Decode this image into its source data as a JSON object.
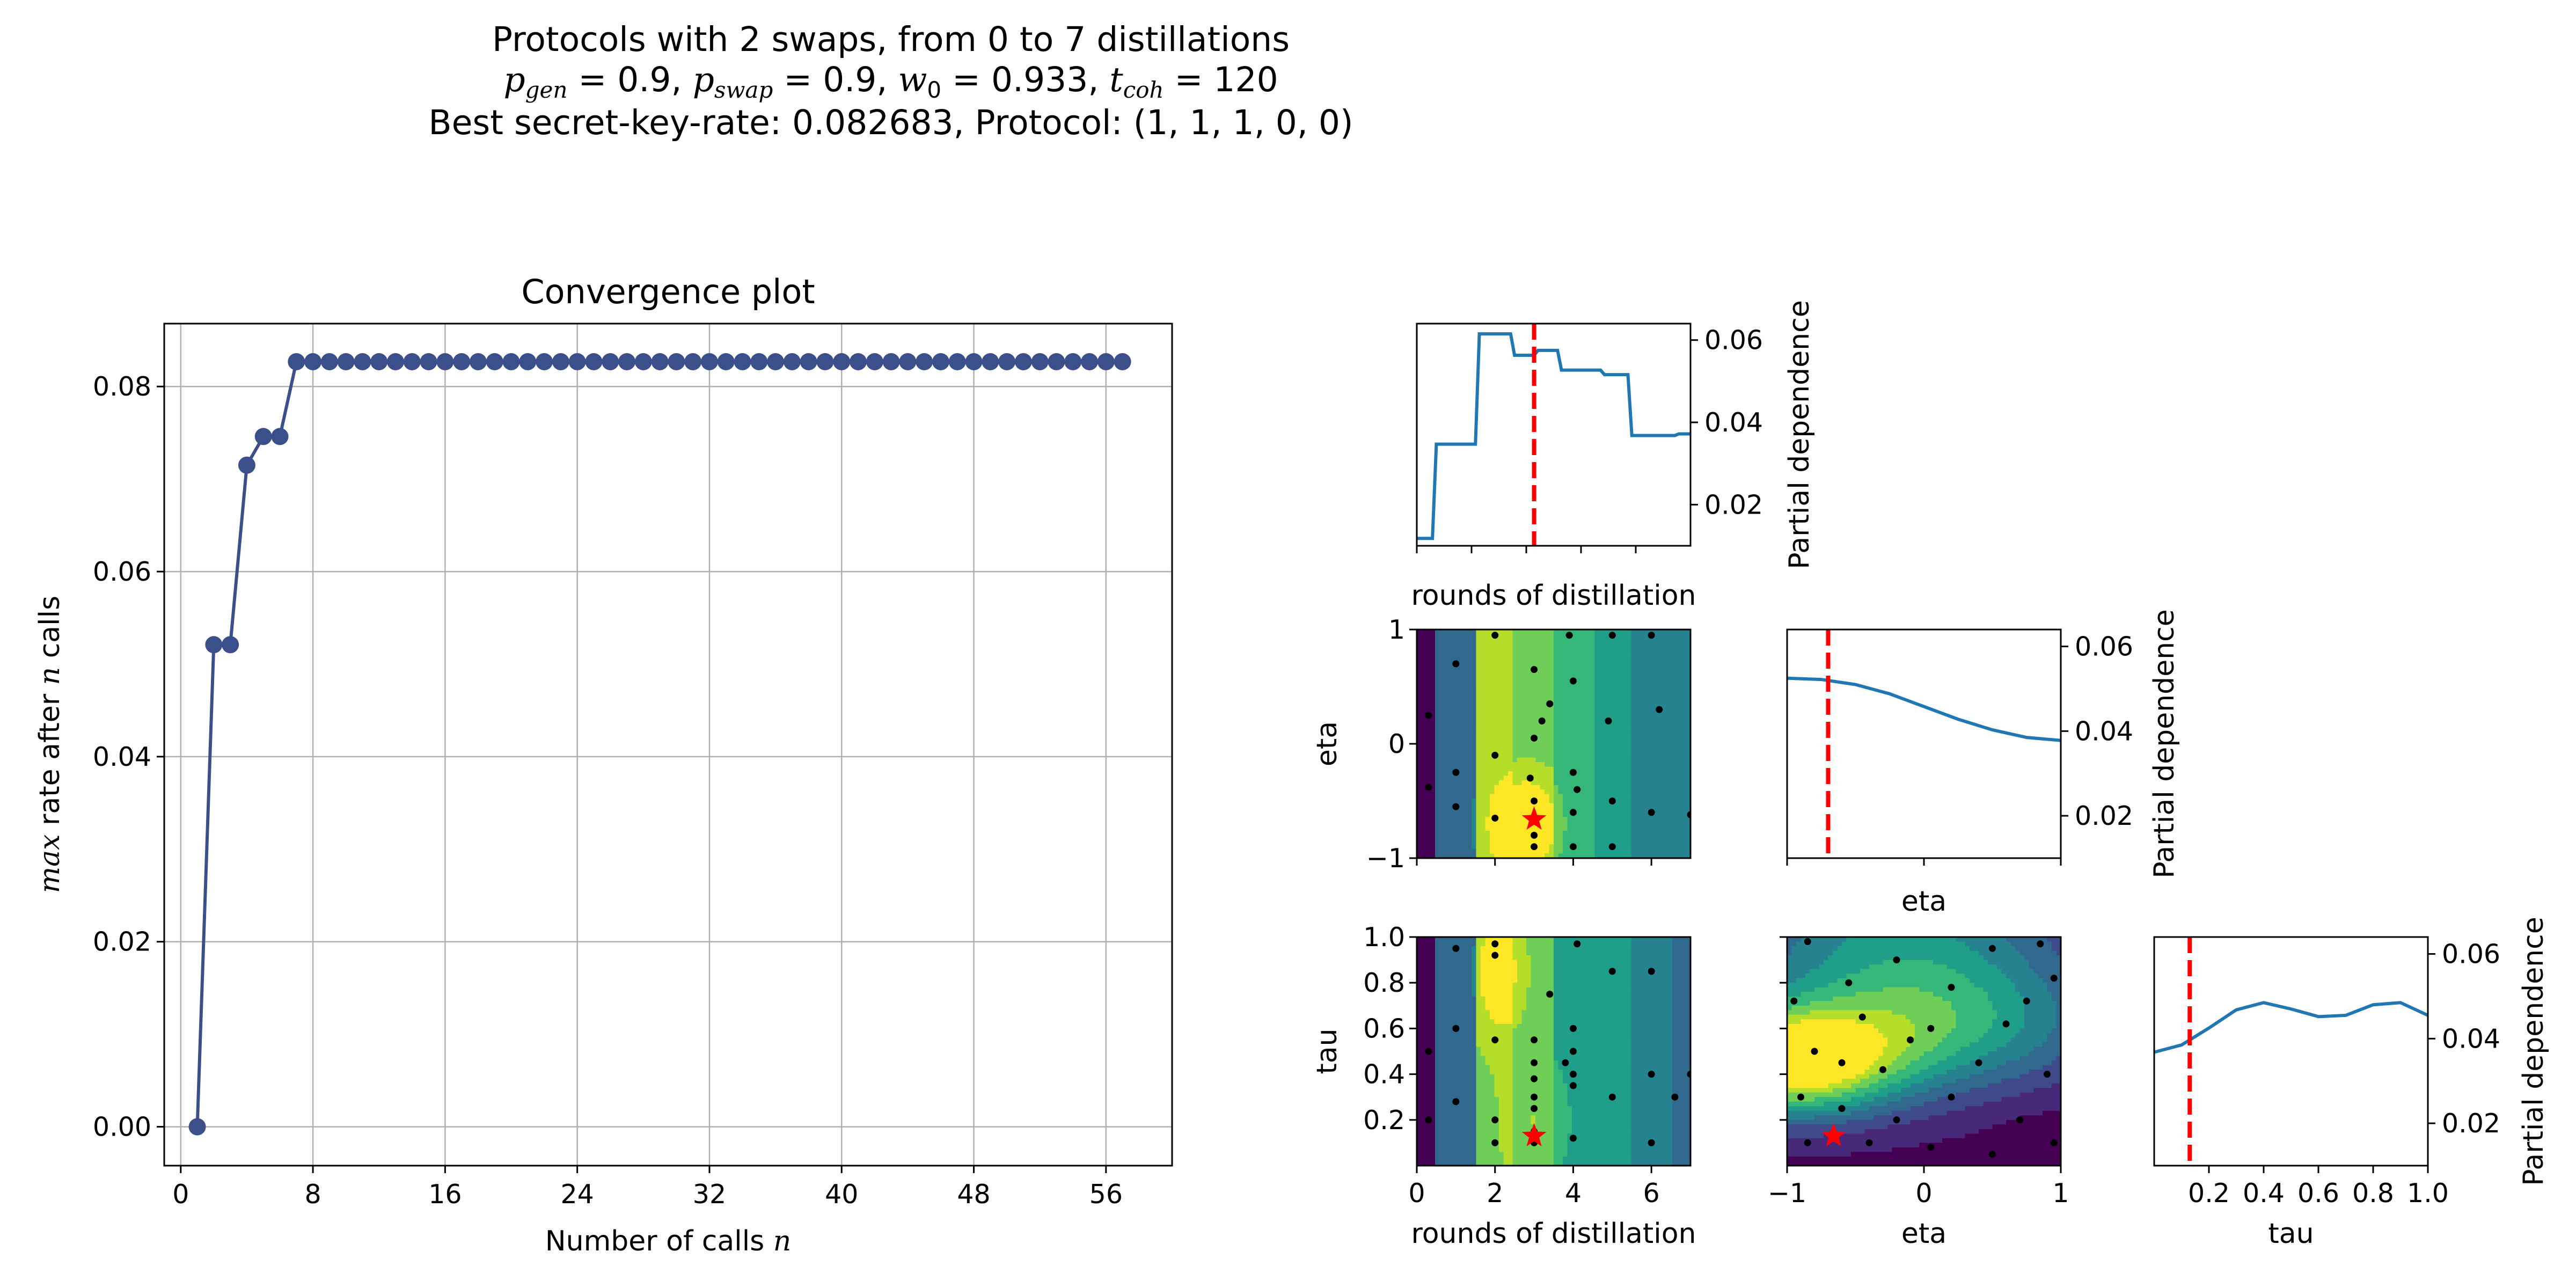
{
  "suptitle": {
    "line1": "Protocols with 2 swaps, from 0 to 7 distillations",
    "line2": "p_gen = 0.9, p_swap = 0.9, w_0 = 0.933, t_coh = 120",
    "line3": "Best secret-key-rate: 0.082683, Protocol: (1, 1, 1, 0, 0)",
    "params": {
      "p_gen": "0.9",
      "p_swap": "0.9",
      "w_0": "0.933",
      "t_coh": "120"
    }
  },
  "chart_data": [
    {
      "type": "line",
      "title": "Convergence plot",
      "xlabel": "Number of calls",
      "xlabel_var": "n",
      "ylabel_prefix": "max",
      "ylabel_mid": "rate after",
      "ylabel_var": "n",
      "ylabel_suffix": "calls",
      "xlim": [
        -1,
        60
      ],
      "ylim": [
        -0.0042,
        0.0868
      ],
      "xticks": [
        0,
        8,
        16,
        24,
        32,
        40,
        48,
        56
      ],
      "yticks": [
        0.0,
        0.02,
        0.04,
        0.06,
        0.08
      ],
      "ytick_labels": [
        "0.00",
        "0.02",
        "0.04",
        "0.06",
        "0.08"
      ],
      "grid": true,
      "color": "#3b4f8a",
      "series": [
        {
          "x": [
            1,
            2,
            3,
            4,
            5,
            6,
            7,
            8,
            9,
            10,
            11,
            12,
            13,
            14,
            15,
            16,
            17,
            18,
            19,
            20,
            21,
            22,
            23,
            24,
            25,
            26,
            27,
            28,
            29,
            30,
            31,
            32,
            33,
            34,
            35,
            36,
            37,
            38,
            39,
            40,
            41,
            42,
            43,
            44,
            45,
            46,
            47,
            48,
            49,
            50,
            51,
            52,
            53,
            54,
            55,
            56,
            57
          ],
          "y": [
            0.0,
            0.0521,
            0.0521,
            0.0715,
            0.0746,
            0.0746,
            0.082683,
            0.082683,
            0.082683,
            0.082683,
            0.082683,
            0.082683,
            0.082683,
            0.082683,
            0.082683,
            0.082683,
            0.082683,
            0.082683,
            0.082683,
            0.082683,
            0.082683,
            0.082683,
            0.082683,
            0.082683,
            0.082683,
            0.082683,
            0.082683,
            0.082683,
            0.082683,
            0.082683,
            0.082683,
            0.082683,
            0.082683,
            0.082683,
            0.082683,
            0.082683,
            0.082683,
            0.082683,
            0.082683,
            0.082683,
            0.082683,
            0.082683,
            0.082683,
            0.082683,
            0.082683,
            0.082683,
            0.082683,
            0.082683,
            0.082683,
            0.082683,
            0.082683,
            0.082683,
            0.082683,
            0.082683,
            0.082683,
            0.082683,
            0.082683
          ]
        }
      ]
    },
    {
      "type": "line",
      "xlabel": "rounds of distillation",
      "ylabel": "Partial dependence",
      "xlim": [
        0,
        7
      ],
      "ylim": [
        0.01,
        0.064
      ],
      "yticks": [
        0.02,
        0.04,
        0.06
      ],
      "ytick_labels": [
        "0.02",
        "0.04",
        "0.06"
      ],
      "best": 3,
      "color": "#1f77b4",
      "series": [
        {
          "x": [
            0,
            0.4,
            0.5,
            1.5,
            1.6,
            2.4,
            2.5,
            3.0,
            3.1,
            3.6,
            3.7,
            4.7,
            4.8,
            5.4,
            5.5,
            6.6,
            6.7,
            7
          ],
          "y": [
            0.0118,
            0.0118,
            0.0347,
            0.0347,
            0.0615,
            0.0615,
            0.0563,
            0.0563,
            0.0575,
            0.0575,
            0.0527,
            0.0527,
            0.0516,
            0.0516,
            0.0368,
            0.0368,
            0.0372,
            0.0372
          ]
        }
      ]
    },
    {
      "type": "line",
      "xlabel": "eta",
      "ylabel": "Partial dependence",
      "xlim": [
        -1,
        1
      ],
      "ylim": [
        0.01,
        0.064
      ],
      "yticks": [
        0.02,
        0.04,
        0.06
      ],
      "ytick_labels": [
        "0.02",
        "0.04",
        "0.06"
      ],
      "best": -0.7,
      "color": "#1f77b4",
      "series": [
        {
          "x": [
            -1.0,
            -0.75,
            -0.5,
            -0.25,
            0.0,
            0.25,
            0.5,
            0.75,
            1.0
          ],
          "y": [
            0.0525,
            0.0522,
            0.051,
            0.0488,
            0.0458,
            0.0428,
            0.0403,
            0.0385,
            0.0378
          ]
        }
      ]
    },
    {
      "type": "line",
      "xlabel": "tau",
      "ylabel": "Partial dependence",
      "xlim": [
        0,
        1
      ],
      "ylim": [
        0.01,
        0.064
      ],
      "xticks": [
        0.2,
        0.4,
        0.6,
        0.8,
        1.0
      ],
      "xtick_labels": [
        "0.2",
        "0.4",
        "0.6",
        "0.8",
        "1.0"
      ],
      "yticks": [
        0.02,
        0.04,
        0.06
      ],
      "ytick_labels": [
        "0.02",
        "0.04",
        "0.06"
      ],
      "best": 0.13,
      "color": "#1f77b4",
      "series": [
        {
          "x": [
            0.0,
            0.1,
            0.2,
            0.3,
            0.4,
            0.5,
            0.6,
            0.7,
            0.8,
            0.9,
            1.0
          ],
          "y": [
            0.0368,
            0.0385,
            0.0425,
            0.0468,
            0.0485,
            0.047,
            0.0452,
            0.0455,
            0.048,
            0.0485,
            0.0455
          ]
        }
      ]
    },
    {
      "type": "heatmap",
      "xlabel": "",
      "ylabel": "eta",
      "xlim": [
        0,
        7
      ],
      "ylim": [
        -1,
        1
      ],
      "yticks": [
        -1,
        0,
        1
      ],
      "ytick_labels": [
        "−1",
        "0",
        "1"
      ],
      "best": {
        "x": 3,
        "y": -0.66
      },
      "samples": [
        [
          0.3,
          0.25
        ],
        [
          0.3,
          -0.38
        ],
        [
          1,
          0.7
        ],
        [
          1,
          -0.25
        ],
        [
          1,
          -0.55
        ],
        [
          2,
          0.95
        ],
        [
          2,
          -0.1
        ],
        [
          2,
          -0.65
        ],
        [
          3,
          0.65
        ],
        [
          3,
          -0.8
        ],
        [
          3,
          -0.5
        ],
        [
          3,
          0.05
        ],
        [
          3,
          -0.9
        ],
        [
          3.4,
          0.35
        ],
        [
          3.9,
          0.95
        ],
        [
          4,
          -0.25
        ],
        [
          4,
          -0.6
        ],
        [
          4,
          -0.9
        ],
        [
          4,
          0.55
        ],
        [
          4.9,
          0.2
        ],
        [
          5,
          0.95
        ],
        [
          5,
          -0.5
        ],
        [
          5,
          -0.9
        ],
        [
          6,
          0.95
        ],
        [
          6,
          -0.6
        ],
        [
          6.2,
          0.3
        ],
        [
          7,
          -0.62
        ],
        [
          3.2,
          0.2
        ],
        [
          2.9,
          -0.3
        ],
        [
          4.1,
          -0.4
        ]
      ]
    },
    {
      "type": "heatmap",
      "xlabel": "rounds of distillation",
      "ylabel": "tau",
      "xlim": [
        0,
        7
      ],
      "ylim": [
        0,
        1
      ],
      "xticks": [
        0,
        2,
        4,
        6
      ],
      "xtick_labels": [
        "0",
        "2",
        "4",
        "6"
      ],
      "yticks": [
        0.2,
        0.4,
        0.6,
        0.8,
        1.0
      ],
      "ytick_labels": [
        "0.2",
        "0.4",
        "0.6",
        "0.8",
        "1.0"
      ],
      "best": {
        "x": 3,
        "y": 0.13
      },
      "samples": [
        [
          0.3,
          0.5
        ],
        [
          0.3,
          0.2
        ],
        [
          1,
          0.28
        ],
        [
          1,
          0.6
        ],
        [
          1,
          0.95
        ],
        [
          2,
          0.97
        ],
        [
          2,
          0.92
        ],
        [
          2,
          0.55
        ],
        [
          2,
          0.1
        ],
        [
          2,
          0.2
        ],
        [
          3,
          0.15
        ],
        [
          3,
          0.25
        ],
        [
          3,
          0.3
        ],
        [
          3,
          0.38
        ],
        [
          3,
          0.45
        ],
        [
          3,
          0.55
        ],
        [
          3,
          0.1
        ],
        [
          3.4,
          0.75
        ],
        [
          3.8,
          0.45
        ],
        [
          4,
          0.6
        ],
        [
          4,
          0.4
        ],
        [
          4,
          0.35
        ],
        [
          4,
          0.12
        ],
        [
          4,
          0.5
        ],
        [
          4.1,
          0.97
        ],
        [
          5,
          0.3
        ],
        [
          5,
          0.85
        ],
        [
          6,
          0.85
        ],
        [
          6,
          0.4
        ],
        [
          6,
          0.1
        ],
        [
          7,
          0.4
        ],
        [
          6.6,
          0.3
        ]
      ]
    },
    {
      "type": "heatmap",
      "xlabel": "eta",
      "ylabel": "",
      "xlim": [
        -1,
        1
      ],
      "ylim": [
        0,
        1
      ],
      "xticks": [
        -1,
        0,
        1
      ],
      "xtick_labels": [
        "−1",
        "0",
        "1"
      ],
      "best": {
        "x": -0.66,
        "y": 0.13
      },
      "samples": [
        [
          -0.85,
          0.98
        ],
        [
          -0.2,
          0.9
        ],
        [
          0.5,
          0.95
        ],
        [
          0.85,
          0.97
        ],
        [
          -0.55,
          0.8
        ],
        [
          0.2,
          0.78
        ],
        [
          0.95,
          0.82
        ],
        [
          -0.95,
          0.72
        ],
        [
          -0.45,
          0.65
        ],
        [
          0.05,
          0.6
        ],
        [
          0.6,
          0.62
        ],
        [
          -0.8,
          0.5
        ],
        [
          -0.6,
          0.45
        ],
        [
          -0.3,
          0.42
        ],
        [
          0.4,
          0.45
        ],
        [
          0.9,
          0.4
        ],
        [
          -0.9,
          0.3
        ],
        [
          -0.6,
          0.25
        ],
        [
          -0.2,
          0.2
        ],
        [
          0.2,
          0.3
        ],
        [
          0.7,
          0.2
        ],
        [
          -0.85,
          0.1
        ],
        [
          -0.4,
          0.1
        ],
        [
          0.05,
          0.08
        ],
        [
          0.5,
          0.05
        ],
        [
          0.95,
          0.1
        ],
        [
          -0.1,
          0.55
        ],
        [
          0.75,
          0.72
        ]
      ]
    }
  ]
}
